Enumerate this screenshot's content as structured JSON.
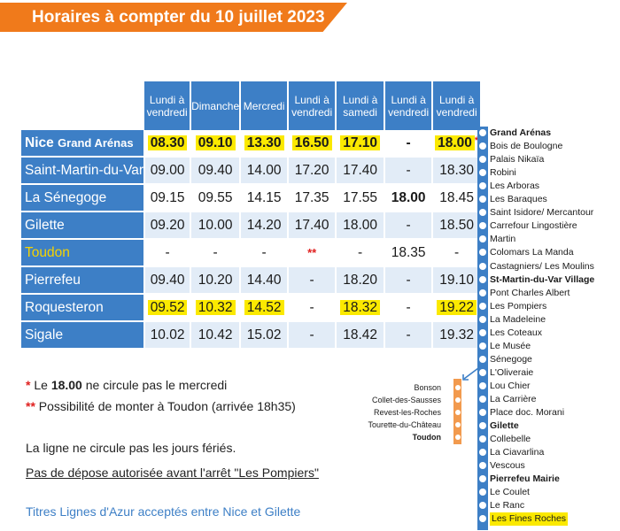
{
  "header": {
    "title": "Horaires à compter du 10 juillet 2023",
    "color": "#f07a1b"
  },
  "timetable": {
    "columns": [
      [
        "Lundi à",
        "vendredi"
      ],
      [
        "Dimanche",
        ""
      ],
      [
        "Mercredi",
        ""
      ],
      [
        "Lundi à",
        "vendredi"
      ],
      [
        "Lundi à",
        "samedi"
      ],
      [
        "Lundi à",
        "vendredi"
      ],
      [
        "Lundi à",
        "vendredi"
      ]
    ],
    "rows": [
      {
        "stop_main": "Nice ",
        "stop_small": "Grand Arénas",
        "times": [
          "08.30",
          "09.10",
          "13.30",
          "16.50",
          "17.10",
          "-",
          "18.00"
        ],
        "star_after": "*"
      },
      {
        "stop_main": "Saint-Martin-du-Var",
        "stop_small": "",
        "times": [
          "09.00",
          "09.40",
          "14.00",
          "17.20",
          "17.40",
          "-",
          "18.30"
        ]
      },
      {
        "stop_main": "La Sénegoge",
        "stop_small": "",
        "times": [
          "09.15",
          "09.55",
          "14.15",
          "17.35",
          "17.55",
          "18.00",
          "18.45"
        ]
      },
      {
        "stop_main": "Gilette",
        "stop_small": "",
        "times": [
          "09.20",
          "10.00",
          "14.20",
          "17.40",
          "18.00",
          "-",
          "18.50"
        ]
      },
      {
        "stop_main": "Toudon",
        "stop_small": "",
        "times": [
          "-",
          "-",
          "-",
          "**",
          "-",
          "18.35",
          "-"
        ]
      },
      {
        "stop_main": "Pierrefeu",
        "stop_small": "",
        "times": [
          "09.40",
          "10.20",
          "14.40",
          "-",
          "18.20",
          "-",
          "19.10"
        ]
      },
      {
        "stop_main": "Roquesteron",
        "stop_small": "",
        "times": [
          "09.52",
          "10.32",
          "14.52",
          "-",
          "18.32",
          "-",
          "19.22"
        ]
      },
      {
        "stop_main": "Sigale",
        "stop_small": "",
        "times": [
          "10.02",
          "10.42",
          "15.02",
          "-",
          "18.42",
          "-",
          "19.32"
        ]
      }
    ],
    "colors": {
      "header_blue": "#3d7fc6",
      "row_alt": "#e2ecf7",
      "highlight": "#fbe900",
      "red": "#e0201f"
    }
  },
  "notes": {
    "n1_star": "*",
    "n1_pre": " Le ",
    "n1_bold": "18.00",
    "n1_post": " ne circule pas le mercredi",
    "n2_star": "**",
    "n2_text": " Possibilité de monter à Toudon (arrivée 18h35)",
    "holidays": "La ligne ne circule pas les jours fériés.",
    "dropoff": "Pas de dépose autorisée avant l'arrêt \"Les Pompiers\"",
    "tickets": "Titres Lignes d'Azur acceptés entre Nice et Gilette"
  },
  "route": {
    "stops": [
      {
        "name": "Grand Arénas",
        "bold": true
      },
      {
        "name": "Bois de Boulogne",
        "bold": false
      },
      {
        "name": "Palais Nikaïa",
        "bold": false
      },
      {
        "name": "Robini",
        "bold": false
      },
      {
        "name": "Les Arboras",
        "bold": false
      },
      {
        "name": "Les Baraques",
        "bold": false
      },
      {
        "name": "Saint Isidore/ Mercantour",
        "bold": false
      },
      {
        "name": "Carrefour Lingostière",
        "bold": false
      },
      {
        "name": "Martin",
        "bold": false
      },
      {
        "name": "Colomars La Manda",
        "bold": false
      },
      {
        "name": "Castagniers/ Les Moulins",
        "bold": false
      },
      {
        "name": "St-Martin-du-Var Village",
        "bold": true
      },
      {
        "name": "Pont Charles Albert",
        "bold": false
      },
      {
        "name": "Les Pompiers",
        "bold": false
      },
      {
        "name": "La Madeleine",
        "bold": false
      },
      {
        "name": "Les Coteaux",
        "bold": false
      },
      {
        "name": "Le Musée",
        "bold": false
      },
      {
        "name": "Sénegoge",
        "bold": false
      },
      {
        "name": "L'Oliveraie",
        "bold": false
      },
      {
        "name": "Lou Chier",
        "bold": false
      },
      {
        "name": "La Carrière",
        "bold": false
      },
      {
        "name": "Place doc. Morani",
        "bold": false
      },
      {
        "name": "Gilette",
        "bold": true
      },
      {
        "name": "Collebelle",
        "bold": false
      },
      {
        "name": "La Ciavarlina",
        "bold": false
      },
      {
        "name": "Vescous",
        "bold": false
      },
      {
        "name": "Pierrefeu Mairie",
        "bold": true
      },
      {
        "name": "Le Coulet",
        "bold": false
      },
      {
        "name": "Le Ranc",
        "bold": false
      },
      {
        "name": "Les Fines Roches",
        "bold": false,
        "highlight": true
      }
    ],
    "branch": [
      {
        "name": "Bonson",
        "bold": false
      },
      {
        "name": "Collet-des-Sausses",
        "bold": false
      },
      {
        "name": "Revest-les-Roches",
        "bold": false
      },
      {
        "name": "Tourette-du-Château",
        "bold": false
      },
      {
        "name": "Toudon",
        "bold": true
      }
    ],
    "branch_color": "#f29a4e"
  }
}
